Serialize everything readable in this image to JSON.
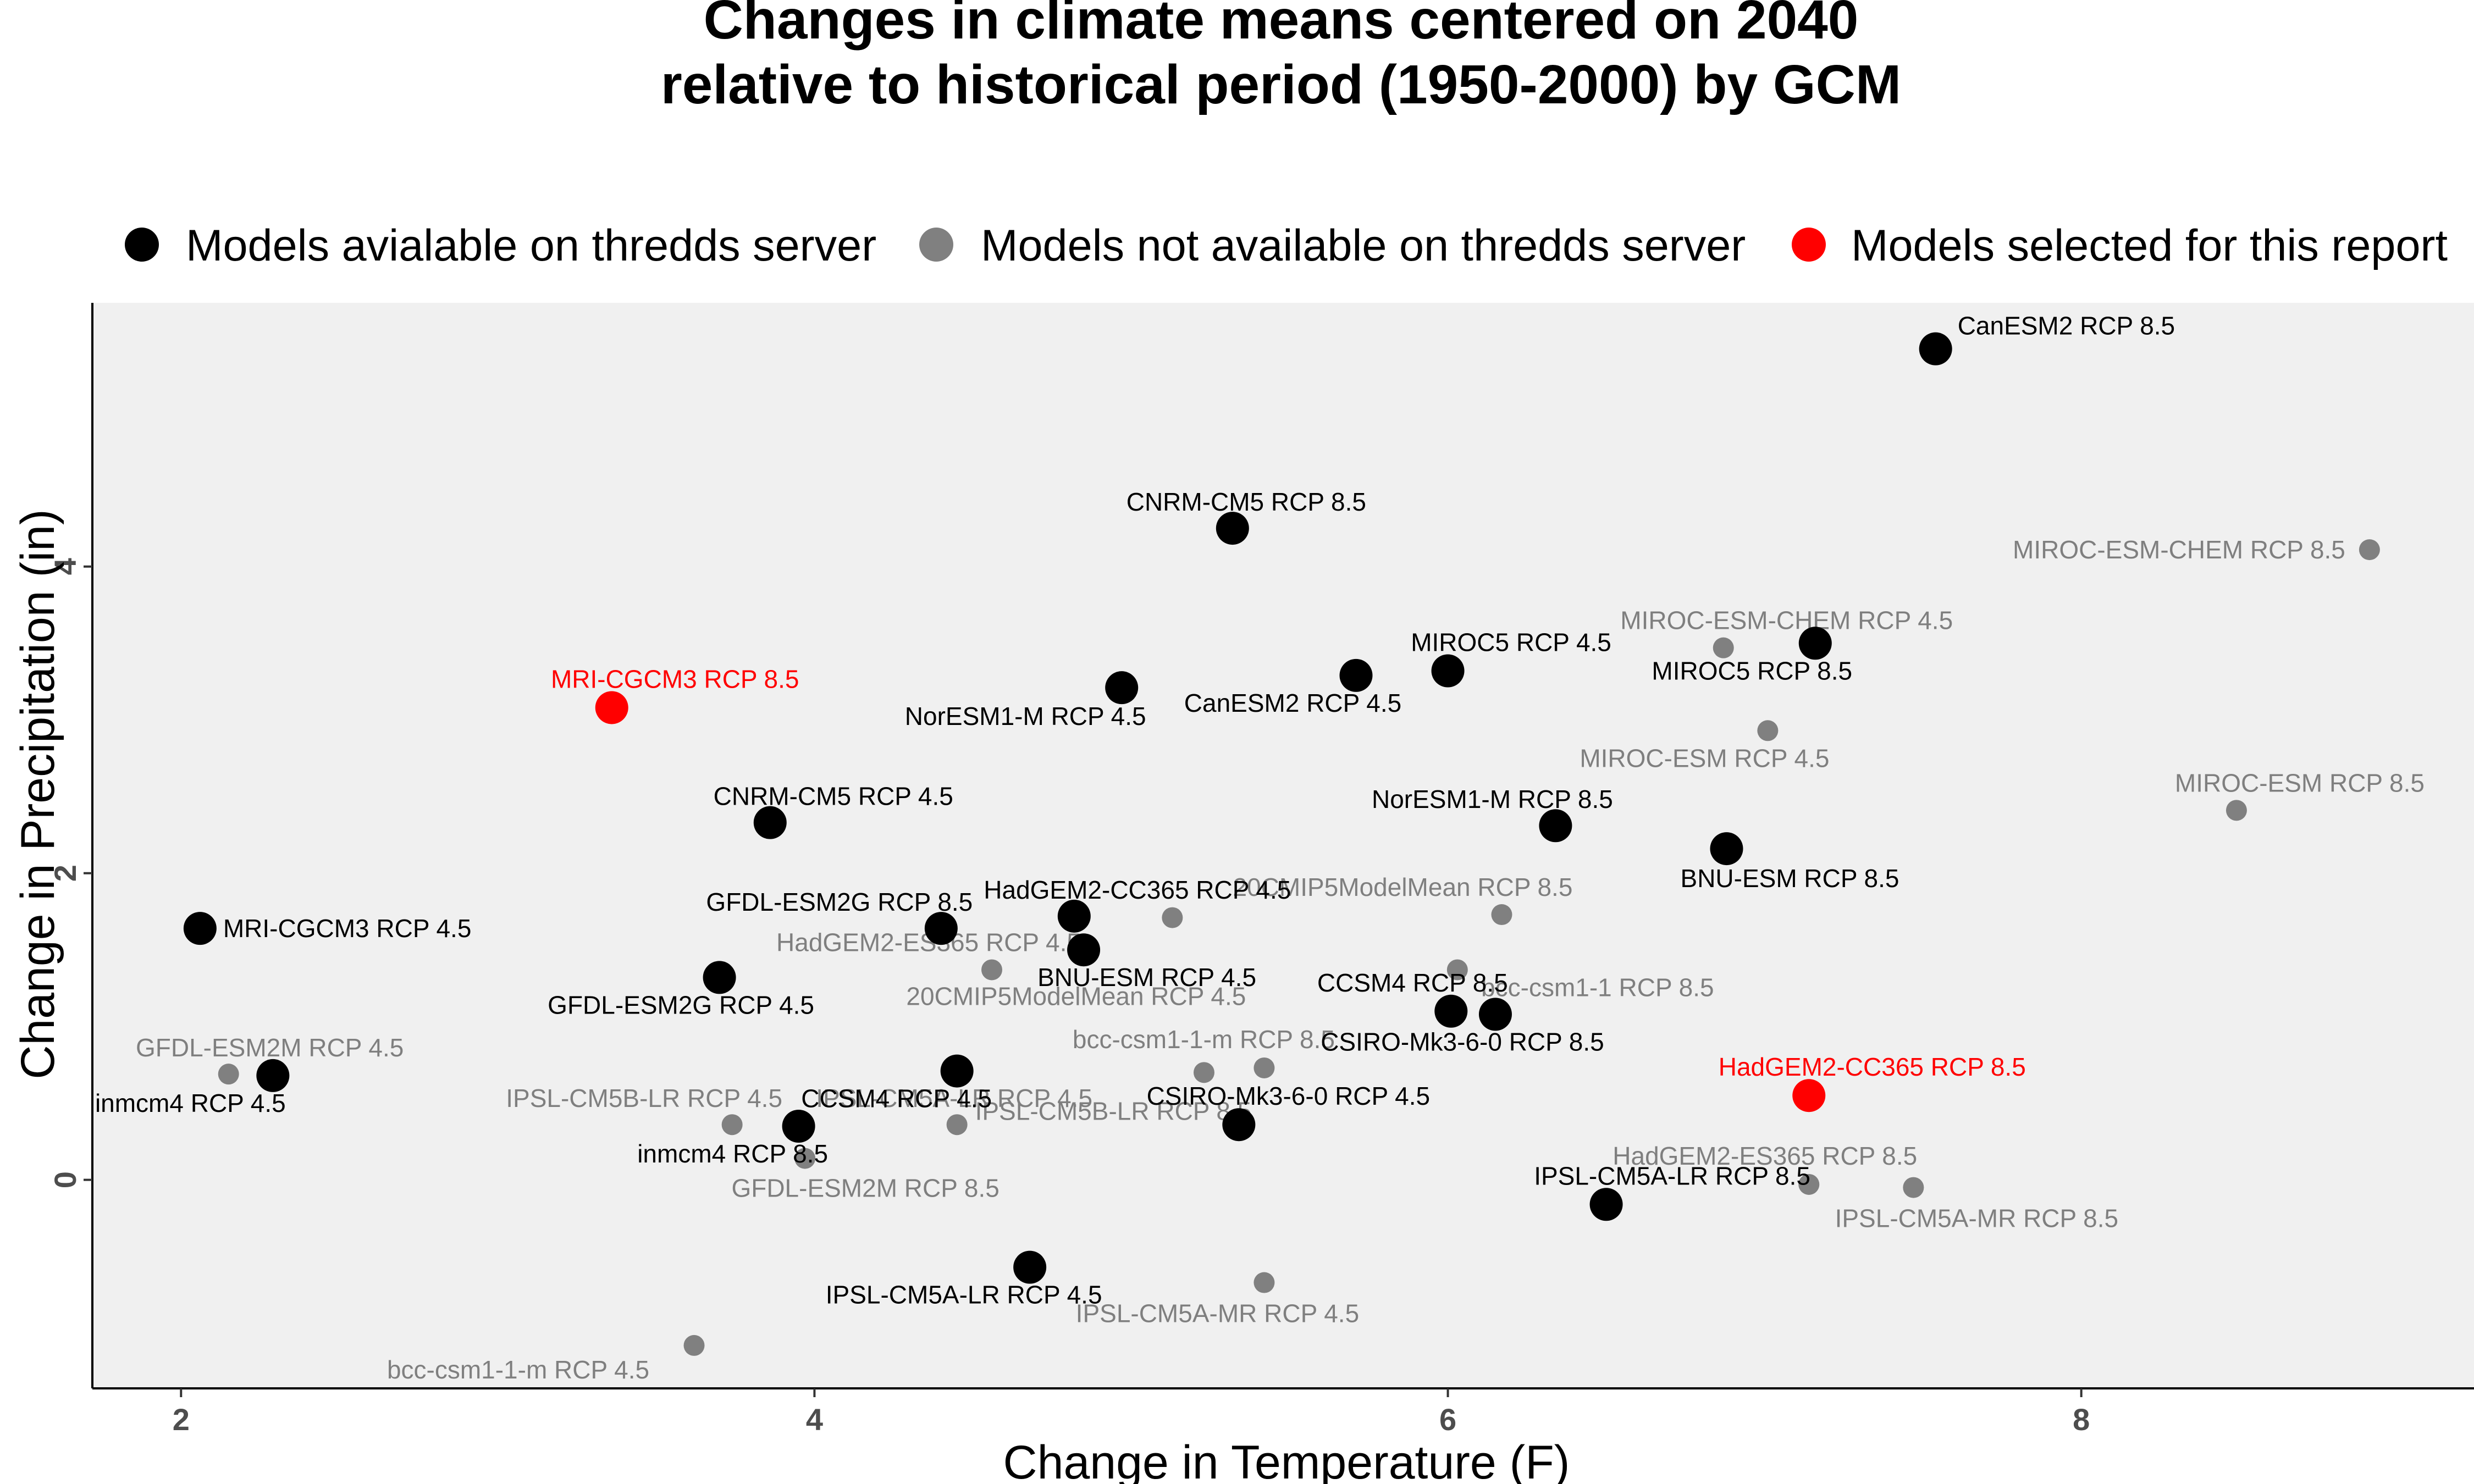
{
  "chart_data": {
    "type": "scatter",
    "title": "Changes in climate means centered on 2040",
    "subtitle": "relative to historical period (1950-2000) by GCM",
    "xlabel": "Change in Temperature (F)",
    "ylabel": "Change in Precipitation (in)",
    "xlim": [
      1.72,
      9.24
    ],
    "ylim": [
      -1.36,
      5.72
    ],
    "x_ticks": [
      2,
      4,
      6,
      8
    ],
    "y_ticks": [
      0,
      2,
      4
    ],
    "grid": false,
    "legend_position": "top",
    "colors": {
      "available": "#000000",
      "not_available": "#808080",
      "selected": "#ff0000",
      "panel": "#f0f0f0",
      "axis": "#000000"
    },
    "legend": [
      {
        "group": "available",
        "label": "Models avialable on thredds server"
      },
      {
        "group": "not_available",
        "label": "Models not available on thredds server"
      },
      {
        "group": "selected",
        "label": "Models selected for this report"
      }
    ],
    "series": [
      {
        "name": "Models avialable on thredds server",
        "group": "available",
        "points": [
          {
            "label": "CanESM2 RCP 8.5",
            "x": 7.54,
            "y": 5.42
          },
          {
            "label": "CNRM-CM5 RCP 8.5",
            "x": 5.32,
            "y": 4.25
          },
          {
            "label": "MIROC5 RCP 4.5",
            "x": 6.0,
            "y": 3.32
          },
          {
            "label": "MIROC5 RCP 8.5",
            "x": 7.16,
            "y": 3.5
          },
          {
            "label": "CanESM2 RCP 4.5",
            "x": 5.71,
            "y": 3.29
          },
          {
            "label": "NorESM1-M RCP 4.5",
            "x": 4.97,
            "y": 3.21
          },
          {
            "label": "CNRM-CM5 RCP 4.5",
            "x": 3.86,
            "y": 2.33
          },
          {
            "label": "NorESM1-M RCP 8.5",
            "x": 6.34,
            "y": 2.31
          },
          {
            "label": "BNU-ESM RCP 8.5",
            "x": 6.88,
            "y": 2.16
          },
          {
            "label": "MRI-CGCM3 RCP 4.5",
            "x": 2.06,
            "y": 1.64
          },
          {
            "label": "GFDL-ESM2G RCP 8.5",
            "x": 4.4,
            "y": 1.64
          },
          {
            "label": "HadGEM2-CC365 RCP 4.5",
            "x": 4.82,
            "y": 1.72
          },
          {
            "label": "BNU-ESM RCP 4.5",
            "x": 4.85,
            "y": 1.5
          },
          {
            "label": "GFDL-ESM2G RCP 4.5",
            "x": 3.7,
            "y": 1.32
          },
          {
            "label": "CCSM4 RCP 8.5",
            "x": 6.01,
            "y": 1.1
          },
          {
            "label": "CSIRO-Mk3-6-0 RCP 8.5",
            "x": 6.15,
            "y": 1.08
          },
          {
            "label": "inmcm4 RCP 4.5",
            "x": 2.29,
            "y": 0.68
          },
          {
            "label": "CCSM4 RCP 4.5",
            "x": 4.45,
            "y": 0.71
          },
          {
            "label": "inmcm4 RCP 8.5",
            "x": 3.95,
            "y": 0.35
          },
          {
            "label": "CSIRO-Mk3-6-0 RCP 4.5",
            "x": 5.34,
            "y": 0.36
          },
          {
            "label": "IPSL-CM5A-LR RCP 8.5",
            "x": 6.5,
            "y": -0.16
          },
          {
            "label": "IPSL-CM5A-LR RCP 4.5",
            "x": 4.68,
            "y": -0.57
          }
        ]
      },
      {
        "name": "Models not available on thredds server",
        "group": "not_available",
        "points": [
          {
            "label": "MIROC-ESM-CHEM RCP 8.5",
            "x": 8.91,
            "y": 4.11
          },
          {
            "label": "MIROC-ESM-CHEM RCP 4.5",
            "x": 6.87,
            "y": 3.47
          },
          {
            "label": "MIROC-ESM RCP 4.5",
            "x": 7.01,
            "y": 2.93
          },
          {
            "label": "MIROC-ESM RCP 8.5",
            "x": 8.49,
            "y": 2.41
          },
          {
            "label": "20CMIP5ModelMean RCP 8.5",
            "x": 6.17,
            "y": 1.73
          },
          {
            "label": "HadGEM2-ES365 RCP 4.5",
            "x": 4.56,
            "y": 1.37
          },
          {
            "label": "20CMIP5ModelMean RCP 4.5",
            "x": 5.13,
            "y": 1.71
          },
          {
            "label": "bcc-csm1-1 RCP 8.5",
            "x": 6.03,
            "y": 1.37
          },
          {
            "label": "bcc-csm1-1-m RCP 8.5",
            "x": 5.42,
            "y": 0.73
          },
          {
            "label": "IPSL-CM5B-LR RCP 8.5",
            "x": 5.23,
            "y": 0.7
          },
          {
            "label": "GFDL-ESM2M RCP 4.5",
            "x": 2.15,
            "y": 0.69
          },
          {
            "label": "IPSL-CM5B-LR RCP 4.5",
            "x": 3.74,
            "y": 0.36
          },
          {
            "label": "IPSL-CM5A-LR RCP 4.5",
            "x": 4.45,
            "y": 0.36
          },
          {
            "label": "GFDL-ESM2M RCP 8.5",
            "x": 3.97,
            "y": 0.14
          },
          {
            "label": "HadGEM2-ES365 RCP 8.5",
            "x": 7.14,
            "y": -0.03
          },
          {
            "label": "IPSL-CM5A-MR RCP 8.5",
            "x": 7.47,
            "y": -0.05
          },
          {
            "label": "IPSL-CM5A-MR RCP 4.5",
            "x": 5.42,
            "y": -0.67
          },
          {
            "label": "bcc-csm1-1-m RCP 4.5",
            "x": 3.62,
            "y": -1.08
          }
        ]
      },
      {
        "name": "Models selected for this report",
        "group": "selected",
        "points": [
          {
            "label": "MRI-CGCM3 RCP 8.5",
            "x": 3.36,
            "y": 3.08
          },
          {
            "label": "HadGEM2-CC365 RCP 8.5",
            "x": 7.14,
            "y": 0.55
          }
        ]
      }
    ]
  }
}
